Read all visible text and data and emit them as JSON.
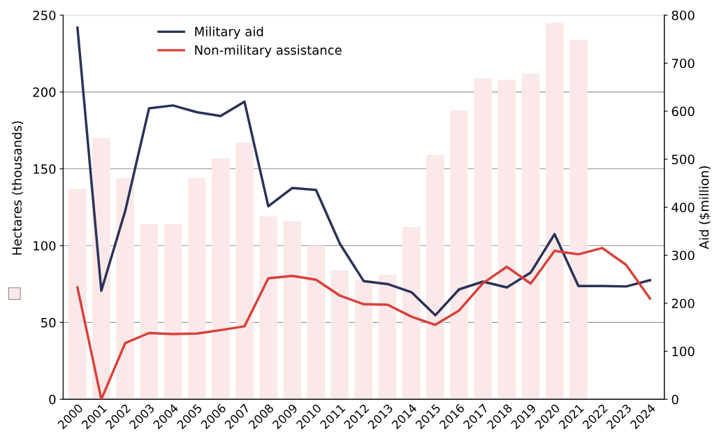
{
  "chart_data": {
    "type": "bar",
    "ylabel": "Hectares (thousands)",
    "y2label": "Aid ($million)",
    "categories": [
      "2000",
      "2001",
      "2002",
      "2003",
      "2004",
      "2005",
      "2006",
      "2007",
      "2008",
      "2009",
      "2010",
      "2011",
      "2012",
      "2013",
      "2014",
      "2015",
      "2016",
      "2017",
      "2018",
      "2019",
      "2020",
      "2021",
      "2022",
      "2023",
      "2024"
    ],
    "series": [
      {
        "color": "#fbe8e9",
        "values": [
          137,
          170,
          144,
          114,
          114,
          144,
          157,
          167,
          119,
          116,
          100,
          84,
          78,
          81,
          112,
          159,
          188,
          209,
          208,
          212,
          245,
          234,
          null,
          null,
          null
        ]
      },
      {
        "type": "line",
        "axis": "y2",
        "name": "Military aid",
        "color": "#2b3257",
        "values": [
          774,
          226,
          392,
          606,
          612,
          598,
          590,
          620,
          402,
          440,
          436,
          324,
          246,
          240,
          223,
          175,
          229,
          245,
          233,
          264,
          344,
          236,
          236,
          235,
          248
        ]
      },
      {
        "type": "line",
        "axis": "y2",
        "name": "Non-military assistance",
        "color": "#d9403a",
        "values": [
          233,
          0,
          117,
          138,
          136,
          137,
          144,
          152,
          252,
          257,
          249,
          216,
          198,
          197,
          172,
          155,
          185,
          242,
          276,
          241,
          309,
          302,
          315,
          280,
          210
        ]
      }
    ],
    "ylim": [
      0,
      250
    ],
    "yticks": [
      0,
      50,
      100,
      150,
      200,
      250
    ],
    "y2lim": [
      0,
      800
    ],
    "y2ticks": [
      0,
      100,
      200,
      300,
      400,
      500,
      600,
      700,
      800
    ],
    "grid": "y",
    "legend": "top left",
    "marker": "none",
    "line_style": "solid"
  }
}
